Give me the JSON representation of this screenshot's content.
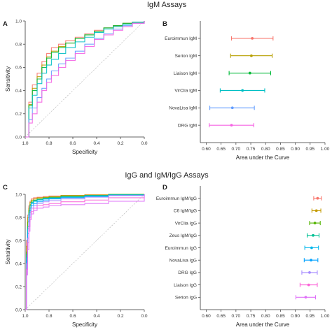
{
  "titles": {
    "top": "IgM Assays",
    "bottom": "IgG and IgM/IgG Assays"
  },
  "chart_data": [
    {
      "panel": "A",
      "type": "line",
      "xlabel": "Specificity",
      "ylabel": "Sensitivity",
      "x_reversed": true,
      "xlim": [
        1.0,
        0.0
      ],
      "ylim": [
        0.0,
        1.0
      ],
      "xticks": [
        "1.0",
        "0.8",
        "0.6",
        "0.4",
        "0.2",
        "0.0"
      ],
      "yticks": [
        "0.0",
        "0.2",
        "0.4",
        "0.6",
        "0.8",
        "1.0"
      ],
      "reference_line": "diagonal",
      "series": [
        {
          "color": "#F8766D",
          "x": [
            1.0,
            0.97,
            0.94,
            0.9,
            0.86,
            0.82,
            0.78,
            0.72,
            0.66,
            0.58,
            0.5,
            0.42,
            0.34,
            0.26,
            0.18,
            0.1,
            0.0
          ],
          "y": [
            0.0,
            0.3,
            0.45,
            0.55,
            0.65,
            0.72,
            0.77,
            0.8,
            0.83,
            0.86,
            0.89,
            0.92,
            0.94,
            0.96,
            0.98,
            0.99,
            1.0
          ]
        },
        {
          "color": "#B79F00",
          "x": [
            1.0,
            0.97,
            0.94,
            0.9,
            0.86,
            0.82,
            0.78,
            0.72,
            0.66,
            0.58,
            0.5,
            0.42,
            0.34,
            0.26,
            0.18,
            0.1,
            0.0
          ],
          "y": [
            0.0,
            0.28,
            0.42,
            0.52,
            0.62,
            0.69,
            0.74,
            0.78,
            0.81,
            0.85,
            0.88,
            0.91,
            0.94,
            0.96,
            0.98,
            0.99,
            1.0
          ]
        },
        {
          "color": "#00BA38",
          "x": [
            1.0,
            0.97,
            0.94,
            0.9,
            0.86,
            0.82,
            0.78,
            0.72,
            0.66,
            0.58,
            0.5,
            0.42,
            0.34,
            0.26,
            0.18,
            0.1,
            0.0
          ],
          "y": [
            0.0,
            0.27,
            0.4,
            0.5,
            0.6,
            0.68,
            0.73,
            0.77,
            0.81,
            0.85,
            0.88,
            0.91,
            0.94,
            0.96,
            0.98,
            0.99,
            1.0
          ]
        },
        {
          "color": "#00BFC4",
          "x": [
            1.0,
            0.97,
            0.94,
            0.9,
            0.86,
            0.82,
            0.78,
            0.72,
            0.66,
            0.58,
            0.5,
            0.42,
            0.34,
            0.26,
            0.18,
            0.1,
            0.0
          ],
          "y": [
            0.0,
            0.25,
            0.36,
            0.46,
            0.55,
            0.62,
            0.67,
            0.72,
            0.77,
            0.82,
            0.86,
            0.9,
            0.93,
            0.95,
            0.97,
            0.99,
            1.0
          ]
        },
        {
          "color": "#619CFF",
          "x": [
            1.0,
            0.97,
            0.94,
            0.9,
            0.86,
            0.82,
            0.78,
            0.72,
            0.66,
            0.58,
            0.5,
            0.42,
            0.34,
            0.26,
            0.18,
            0.1,
            0.0
          ],
          "y": [
            0.0,
            0.15,
            0.25,
            0.34,
            0.42,
            0.5,
            0.57,
            0.63,
            0.68,
            0.74,
            0.8,
            0.85,
            0.89,
            0.93,
            0.96,
            0.98,
            1.0
          ]
        },
        {
          "color": "#F564E3",
          "x": [
            1.0,
            0.97,
            0.94,
            0.9,
            0.86,
            0.82,
            0.78,
            0.72,
            0.66,
            0.58,
            0.5,
            0.42,
            0.34,
            0.26,
            0.18,
            0.1,
            0.0
          ],
          "y": [
            0.0,
            0.12,
            0.2,
            0.3,
            0.4,
            0.47,
            0.53,
            0.6,
            0.66,
            0.72,
            0.78,
            0.84,
            0.88,
            0.92,
            0.95,
            0.98,
            1.0
          ]
        }
      ]
    },
    {
      "panel": "B",
      "type": "scatter",
      "xlabel": "Area under the Curve",
      "xlim": [
        0.58,
        1.0
      ],
      "xticks": [
        "0.60",
        "0.65",
        "0.70",
        "0.75",
        "0.80",
        "0.85",
        "0.90",
        "0.95",
        "1.00"
      ],
      "categories": [
        "Euroimmun IgM",
        "Serion IgM",
        "Liaison IgM",
        "VirClia IgM",
        "NovaLisa IgM",
        "DRG IgM"
      ],
      "series": [
        {
          "name": "Euroimmun IgM",
          "color": "#F8766D",
          "value": 0.755,
          "lower": 0.685,
          "upper": 0.825
        },
        {
          "name": "Serion IgM",
          "color": "#B79F00",
          "value": 0.752,
          "lower": 0.682,
          "upper": 0.822
        },
        {
          "name": "Liaison IgM",
          "color": "#00BA38",
          "value": 0.747,
          "lower": 0.677,
          "upper": 0.817
        },
        {
          "name": "VirClia IgM",
          "color": "#00BFC4",
          "value": 0.722,
          "lower": 0.647,
          "upper": 0.797
        },
        {
          "name": "NovaLisa IgM",
          "color": "#619CFF",
          "value": 0.688,
          "lower": 0.612,
          "upper": 0.762
        },
        {
          "name": "DRG IgM",
          "color": "#F564E3",
          "value": 0.685,
          "lower": 0.61,
          "upper": 0.76
        }
      ]
    },
    {
      "panel": "C",
      "type": "line",
      "xlabel": "Specificity",
      "ylabel": "Sensitivity",
      "x_reversed": true,
      "xlim": [
        1.0,
        0.0
      ],
      "ylim": [
        0.0,
        1.0
      ],
      "xticks": [
        "1.0",
        "0.8",
        "0.6",
        "0.4",
        "0.2",
        "0.0"
      ],
      "yticks": [
        "0.0",
        "0.2",
        "0.4",
        "0.6",
        "0.8",
        "1.0"
      ],
      "reference_line": "diagonal",
      "series": [
        {
          "color": "#F8766D",
          "x": [
            1.0,
            0.99,
            0.98,
            0.97,
            0.96,
            0.95,
            0.93,
            0.9,
            0.85,
            0.8,
            0.7,
            0.5,
            0.3,
            0.0
          ],
          "y": [
            0.0,
            0.6,
            0.82,
            0.9,
            0.94,
            0.96,
            0.97,
            0.975,
            0.98,
            0.985,
            0.99,
            0.995,
            1.0,
            1.0
          ]
        },
        {
          "color": "#C49A00",
          "x": [
            1.0,
            0.99,
            0.98,
            0.97,
            0.96,
            0.95,
            0.93,
            0.9,
            0.85,
            0.8,
            0.7,
            0.5,
            0.3,
            0.0
          ],
          "y": [
            0.0,
            0.55,
            0.8,
            0.88,
            0.93,
            0.95,
            0.96,
            0.97,
            0.975,
            0.98,
            0.99,
            0.995,
            1.0,
            1.0
          ]
        },
        {
          "color": "#53B400",
          "x": [
            1.0,
            0.99,
            0.98,
            0.97,
            0.96,
            0.95,
            0.93,
            0.9,
            0.85,
            0.8,
            0.7,
            0.5,
            0.3,
            0.0
          ],
          "y": [
            0.0,
            0.5,
            0.76,
            0.86,
            0.91,
            0.94,
            0.95,
            0.96,
            0.97,
            0.975,
            0.985,
            0.99,
            1.0,
            1.0
          ]
        },
        {
          "color": "#00C094",
          "x": [
            1.0,
            0.99,
            0.98,
            0.97,
            0.96,
            0.95,
            0.93,
            0.9,
            0.85,
            0.8,
            0.7,
            0.5,
            0.3,
            0.0
          ],
          "y": [
            0.0,
            0.48,
            0.72,
            0.84,
            0.9,
            0.93,
            0.945,
            0.955,
            0.965,
            0.97,
            0.98,
            0.99,
            0.995,
            1.0
          ]
        },
        {
          "color": "#00B6EB",
          "x": [
            1.0,
            0.99,
            0.98,
            0.97,
            0.96,
            0.95,
            0.93,
            0.9,
            0.85,
            0.8,
            0.7,
            0.5,
            0.3,
            0.0
          ],
          "y": [
            0.0,
            0.45,
            0.7,
            0.82,
            0.88,
            0.92,
            0.94,
            0.95,
            0.96,
            0.965,
            0.975,
            0.985,
            0.995,
            1.0
          ]
        },
        {
          "color": "#06A4FF",
          "x": [
            1.0,
            0.99,
            0.98,
            0.97,
            0.96,
            0.95,
            0.93,
            0.9,
            0.85,
            0.8,
            0.7,
            0.5,
            0.3,
            0.0
          ],
          "y": [
            0.0,
            0.42,
            0.66,
            0.8,
            0.86,
            0.9,
            0.92,
            0.935,
            0.95,
            0.96,
            0.97,
            0.98,
            0.99,
            1.0
          ]
        },
        {
          "color": "#A58AFF",
          "x": [
            1.0,
            0.99,
            0.98,
            0.97,
            0.96,
            0.95,
            0.93,
            0.9,
            0.85,
            0.8,
            0.7,
            0.5,
            0.3,
            0.0
          ],
          "y": [
            0.0,
            0.4,
            0.62,
            0.76,
            0.84,
            0.88,
            0.9,
            0.92,
            0.935,
            0.945,
            0.96,
            0.975,
            0.99,
            1.0
          ]
        },
        {
          "color": "#FB61D7",
          "x": [
            1.0,
            0.99,
            0.98,
            0.97,
            0.96,
            0.95,
            0.93,
            0.9,
            0.85,
            0.8,
            0.7,
            0.5,
            0.3,
            0.0
          ],
          "y": [
            0.0,
            0.35,
            0.58,
            0.72,
            0.8,
            0.85,
            0.88,
            0.9,
            0.91,
            0.92,
            0.935,
            0.95,
            0.97,
            1.0
          ]
        },
        {
          "color": "#DF70F8",
          "x": [
            1.0,
            0.99,
            0.98,
            0.97,
            0.96,
            0.95,
            0.93,
            0.9,
            0.85,
            0.8,
            0.7,
            0.5,
            0.3,
            0.0
          ],
          "y": [
            0.0,
            0.3,
            0.52,
            0.68,
            0.78,
            0.83,
            0.86,
            0.88,
            0.89,
            0.9,
            0.91,
            0.92,
            0.94,
            1.0
          ]
        }
      ]
    },
    {
      "panel": "D",
      "type": "scatter",
      "xlabel": "Area under the Curve",
      "xlim": [
        0.58,
        1.0
      ],
      "xticks": [
        "0.60",
        "0.65",
        "0.70",
        "0.75",
        "0.80",
        "0.85",
        "0.90",
        "0.95",
        "1.00"
      ],
      "categories": [
        "Euroimmun IgM/IgG",
        "C6 IgM/IgG",
        "VirClia IgG",
        "Zeus IgM/IgG",
        "Euroimmun IgG",
        "NovaLisa IgG",
        "DRG IgG",
        "Liaison IgG",
        "Serion IgG"
      ],
      "series": [
        {
          "name": "Euroimmun IgM/IgG",
          "color": "#F8766D",
          "value": 0.975,
          "lower": 0.962,
          "upper": 0.988
        },
        {
          "name": "C6 IgM/IgG",
          "color": "#C49A00",
          "value": 0.971,
          "lower": 0.956,
          "upper": 0.986
        },
        {
          "name": "VirClia IgG",
          "color": "#53B400",
          "value": 0.966,
          "lower": 0.948,
          "upper": 0.984
        },
        {
          "name": "Zeus IgM/IgG",
          "color": "#00C094",
          "value": 0.96,
          "lower": 0.94,
          "upper": 0.98
        },
        {
          "name": "Euroimmun IgG",
          "color": "#00B6EB",
          "value": 0.955,
          "lower": 0.932,
          "upper": 0.978
        },
        {
          "name": "NovaLisa IgG",
          "color": "#06A4FF",
          "value": 0.953,
          "lower": 0.93,
          "upper": 0.976
        },
        {
          "name": "DRG IgG",
          "color": "#A58AFF",
          "value": 0.948,
          "lower": 0.922,
          "upper": 0.974
        },
        {
          "name": "Liaison IgG",
          "color": "#FB61D7",
          "value": 0.945,
          "lower": 0.916,
          "upper": 0.974
        },
        {
          "name": "Serion IgG",
          "color": "#DF70F8",
          "value": 0.935,
          "lower": 0.902,
          "upper": 0.968
        }
      ]
    }
  ]
}
